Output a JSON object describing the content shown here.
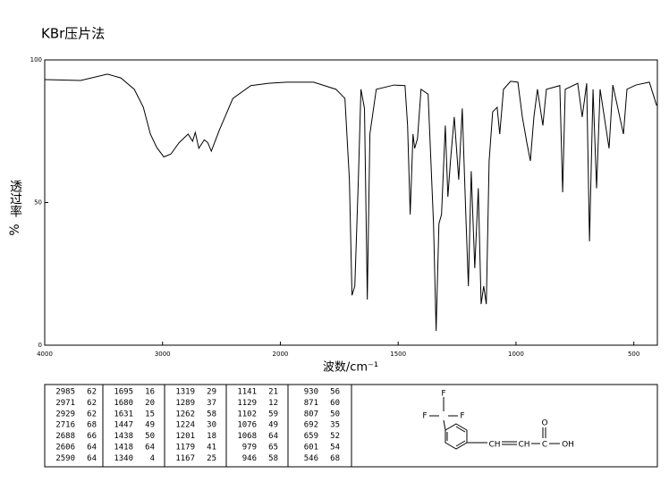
{
  "chart_data": {
    "type": "line",
    "title": "KBr压片法",
    "ylabel_main": "透过率",
    "ylabel_unit": "%",
    "xlabel": "波数/cm⁻¹",
    "xlim": [
      4000,
      400
    ],
    "xticks": [
      4000,
      3000,
      2000,
      1500,
      1000,
      500
    ],
    "ylim": [
      0,
      100
    ],
    "yticks": [
      0,
      50,
      100
    ],
    "series": [
      {
        "color": "#000000",
        "x": [
          4000,
          3696,
          3468,
          3354,
          3240,
          3163,
          3103,
          3049,
          2989,
          2929,
          2859,
          2783,
          2745,
          2722,
          2692,
          2646,
          2616,
          2586,
          2517,
          2403,
          2251,
          2099,
          1973,
          1859,
          1764,
          1726,
          1707,
          1696,
          1684,
          1669,
          1658,
          1643,
          1631,
          1620,
          1593,
          1517,
          1471,
          1460,
          1449,
          1437,
          1430,
          1418,
          1403,
          1373,
          1350,
          1339,
          1327,
          1316,
          1300,
          1289,
          1278,
          1262,
          1243,
          1228,
          1213,
          1202,
          1190,
          1175,
          1160,
          1148,
          1137,
          1126,
          1114,
          1099,
          1080,
          1069,
          1053,
          1023,
          992,
          973,
          954,
          939,
          924,
          909,
          886,
          871,
          814,
          802,
          791,
          738,
          719,
          700,
          688,
          673,
          658,
          643,
          605,
          589,
          544,
          529,
          491,
          434,
          403
        ],
        "values": [
          93.1,
          92.8,
          95,
          93.7,
          89.7,
          83.4,
          74,
          69.3,
          66,
          67,
          71,
          74,
          71.5,
          74.6,
          69,
          72,
          71,
          68,
          75.5,
          86.5,
          91,
          91.8,
          92.2,
          92.2,
          89.7,
          86.5,
          58,
          17.5,
          20.7,
          58,
          89.7,
          83,
          16,
          74,
          89.7,
          91.2,
          91,
          77,
          45.8,
          74,
          69,
          72.4,
          89.7,
          88,
          42.6,
          5,
          42.6,
          45.8,
          77,
          52,
          64.6,
          80,
          58,
          83,
          45.8,
          20.7,
          61,
          27,
          55,
          14.4,
          20.7,
          14.4,
          64.6,
          81.8,
          83.4,
          74,
          89.7,
          92.5,
          92.2,
          80,
          71,
          64.6,
          80,
          89.7,
          77,
          89.7,
          91,
          53.6,
          89.7,
          91.8,
          80,
          91.8,
          36.4,
          89.7,
          55,
          89.7,
          69,
          91.2,
          74,
          89.7,
          91.2,
          92.2,
          84
        ]
      }
    ]
  },
  "peak_table": {
    "columns": [
      [
        [
          2985,
          62
        ],
        [
          2971,
          62
        ],
        [
          2929,
          62
        ],
        [
          2716,
          68
        ],
        [
          2688,
          66
        ],
        [
          2606,
          64
        ],
        [
          2590,
          64
        ]
      ],
      [
        [
          1695,
          16
        ],
        [
          1680,
          20
        ],
        [
          1631,
          15
        ],
        [
          1447,
          49
        ],
        [
          1438,
          50
        ],
        [
          1418,
          64
        ],
        [
          1340,
          4
        ]
      ],
      [
        [
          1319,
          29
        ],
        [
          1289,
          37
        ],
        [
          1262,
          58
        ],
        [
          1224,
          30
        ],
        [
          1201,
          18
        ],
        [
          1179,
          41
        ],
        [
          1167,
          25
        ]
      ],
      [
        [
          1141,
          21
        ],
        [
          1129,
          12
        ],
        [
          1102,
          59
        ],
        [
          1076,
          49
        ],
        [
          1068,
          64
        ],
        [
          979,
          65
        ],
        [
          946,
          58
        ]
      ],
      [
        [
          930,
          56
        ],
        [
          871,
          60
        ],
        [
          807,
          50
        ],
        [
          692,
          35
        ],
        [
          659,
          52
        ],
        [
          601,
          54
        ],
        [
          546,
          68
        ]
      ]
    ]
  },
  "structure": {
    "f_top": "F",
    "f_left": "F",
    "f_right": "F",
    "ch1": "CH",
    "ch2": "CH",
    "c": "C",
    "o": "O",
    "oh": "OH"
  }
}
